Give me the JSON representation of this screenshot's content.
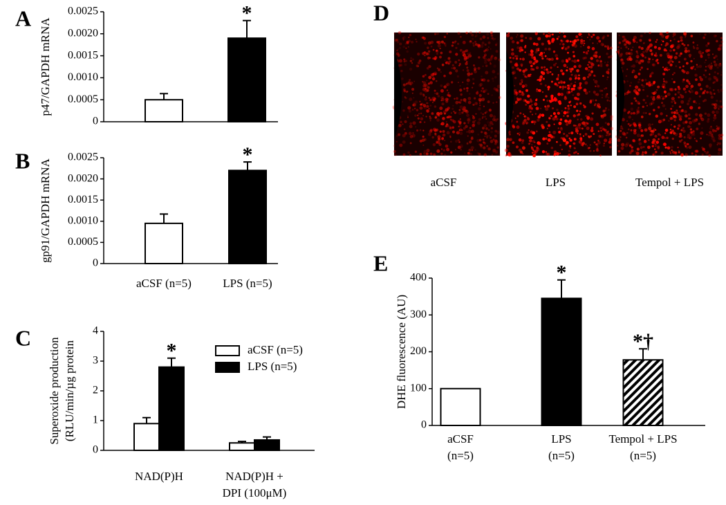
{
  "chart_data": [
    {
      "panel": "A",
      "type": "bar",
      "ylabel": "p47/GAPDH mRNA",
      "categories": [
        null,
        null
      ],
      "values": [
        0.0005,
        0.0019
      ],
      "errors": [
        0.00014,
        0.0004
      ],
      "colors": [
        "#ffffff",
        "#000000"
      ],
      "annotations": [
        null,
        "*"
      ],
      "ylim": [
        0,
        0.0025
      ],
      "yticks": [
        0,
        0.0005,
        {
          "value": 0.001,
          "label": "0.0010"
        },
        0.0015,
        {
          "value": 0.002,
          "label": "0.0020"
        },
        0.0025
      ]
    },
    {
      "panel": "B",
      "type": "bar",
      "ylabel": "gp91/GAPDH mRNA",
      "categories": [
        "aCSF (n=5)",
        "LPS (n=5)"
      ],
      "values": [
        0.00095,
        0.0022
      ],
      "errors": [
        0.00022,
        0.0002
      ],
      "colors": [
        "#ffffff",
        "#000000"
      ],
      "annotations": [
        null,
        "*"
      ],
      "ylim": [
        0,
        0.0025
      ],
      "yticks": [
        0,
        0.0005,
        {
          "value": 0.001,
          "label": "0.0010"
        },
        0.0015,
        {
          "value": 0.002,
          "label": "0.0020"
        },
        0.0025
      ]
    },
    {
      "panel": "C",
      "type": "bar",
      "ylabel": [
        "Superoxide production",
        "(RLU/min/µg protein"
      ],
      "categories": [
        [
          "NAD(P)H"
        ],
        [
          "NAD(P)H +",
          "DPI (100μM)"
        ]
      ],
      "series": [
        {
          "name": "aCSF (n=5)",
          "color": "#ffffff",
          "values": [
            0.9,
            0.25
          ],
          "errors": [
            0.2,
            0.05
          ],
          "annotations": [
            null,
            null
          ]
        },
        {
          "name": "LPS (n=5)",
          "color": "#000000",
          "values": [
            2.8,
            0.35
          ],
          "errors": [
            0.3,
            0.1
          ],
          "annotations": [
            "*",
            null
          ]
        }
      ],
      "ylim": [
        0,
        4
      ],
      "yticks": [
        0,
        1,
        2,
        3,
        4
      ]
    },
    {
      "panel": "E",
      "type": "bar",
      "ylabel": "DHE fluorescence (AU)",
      "categories": [
        [
          "aCSF",
          "(n=5)"
        ],
        [
          "LPS",
          "(n=5)"
        ],
        [
          "Tempol + LPS",
          "(n=5)"
        ]
      ],
      "values": [
        100,
        345,
        178
      ],
      "errors": [
        null,
        50,
        30
      ],
      "colors": [
        "#ffffff",
        "#000000",
        "#000000"
      ],
      "hatch": [
        false,
        false,
        true
      ],
      "annotations": [
        null,
        "*",
        "*†"
      ],
      "ylim": [
        0,
        400
      ],
      "yticks": [
        0,
        100,
        200,
        300,
        400
      ]
    }
  ],
  "image_panel": {
    "panel": "D",
    "labels": [
      "aCSF",
      "LPS",
      "Tempol + LPS"
    ]
  }
}
